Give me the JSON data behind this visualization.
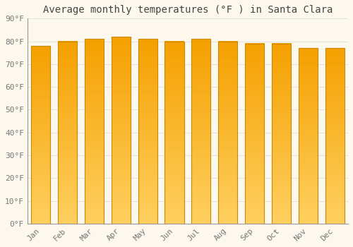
{
  "title": "Average monthly temperatures (°F ) in Santa Clara",
  "months": [
    "Jan",
    "Feb",
    "Mar",
    "Apr",
    "May",
    "Jun",
    "Jul",
    "Aug",
    "Sep",
    "Oct",
    "Nov",
    "Dec"
  ],
  "values": [
    78,
    80,
    81,
    82,
    81,
    80,
    81,
    80,
    79,
    79,
    77,
    77
  ],
  "ylim": [
    0,
    90
  ],
  "yticks": [
    0,
    10,
    20,
    30,
    40,
    50,
    60,
    70,
    80,
    90
  ],
  "bar_color_top": "#F5A000",
  "bar_color_bottom": "#FFD060",
  "bar_border_color": "#CC8800",
  "background_color": "#FDF8EE",
  "grid_color": "#DDDDDD",
  "title_fontsize": 10,
  "tick_fontsize": 8,
  "title_color": "#444444",
  "tick_color": "#777777",
  "bar_width": 0.72,
  "figsize": [
    5.0,
    3.5
  ],
  "dpi": 100
}
